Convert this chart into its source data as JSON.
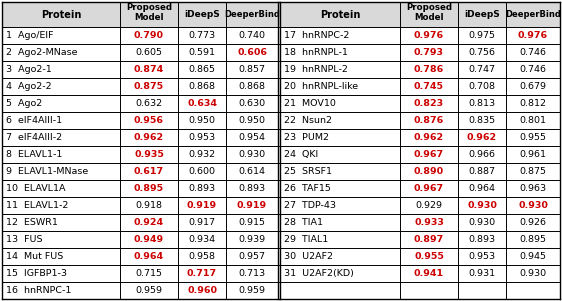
{
  "left_rows": [
    {
      "num": "1",
      "protein": "Ago/EIF",
      "vals": [
        "0.790",
        "0.773",
        "0.740"
      ],
      "red": [
        0
      ],
      "bold": [
        0
      ]
    },
    {
      "num": "2",
      "protein": "Ago2-MNase",
      "vals": [
        "0.605",
        "0.591",
        "0.606"
      ],
      "red": [
        2
      ],
      "bold": [
        2
      ]
    },
    {
      "num": "3",
      "protein": "Ago2-1",
      "vals": [
        "0.874",
        "0.865",
        "0.857"
      ],
      "red": [
        0
      ],
      "bold": [
        0
      ]
    },
    {
      "num": "4",
      "protein": "Ago2-2",
      "vals": [
        "0.875",
        "0.868",
        "0.868"
      ],
      "red": [
        0
      ],
      "bold": [
        0
      ]
    },
    {
      "num": "5",
      "protein": "Ago2",
      "vals": [
        "0.632",
        "0.634",
        "0.630"
      ],
      "red": [
        1
      ],
      "bold": [
        1
      ]
    },
    {
      "num": "6",
      "protein": "eIF4AIII-1",
      "vals": [
        "0.956",
        "0.950",
        "0.950"
      ],
      "red": [
        0
      ],
      "bold": [
        0
      ]
    },
    {
      "num": "7",
      "protein": "eIF4AIII-2",
      "vals": [
        "0.962",
        "0.953",
        "0.954"
      ],
      "red": [
        0
      ],
      "bold": [
        0
      ]
    },
    {
      "num": "8",
      "protein": "ELAVL1-1",
      "vals": [
        "0.935",
        "0.932",
        "0.930"
      ],
      "red": [
        0
      ],
      "bold": [
        0
      ]
    },
    {
      "num": "9",
      "protein": "ELAVL1-MNase",
      "vals": [
        "0.617",
        "0.600",
        "0.614"
      ],
      "red": [
        0
      ],
      "bold": [
        0
      ]
    },
    {
      "num": "10",
      "protein": "ELAVL1A",
      "vals": [
        "0.895",
        "0.893",
        "0.893"
      ],
      "red": [
        0
      ],
      "bold": [
        0
      ]
    },
    {
      "num": "11",
      "protein": "ELAVL1-2",
      "vals": [
        "0.918",
        "0.919",
        "0.919"
      ],
      "red": [
        1,
        2
      ],
      "bold": [
        1,
        2
      ]
    },
    {
      "num": "12",
      "protein": "ESWR1",
      "vals": [
        "0.924",
        "0.917",
        "0.915"
      ],
      "red": [
        0
      ],
      "bold": [
        0
      ]
    },
    {
      "num": "13",
      "protein": "FUS",
      "vals": [
        "0.949",
        "0.934",
        "0.939"
      ],
      "red": [
        0
      ],
      "bold": [
        0
      ]
    },
    {
      "num": "14",
      "protein": "Mut FUS",
      "vals": [
        "0.964",
        "0.958",
        "0.957"
      ],
      "red": [
        0
      ],
      "bold": [
        0
      ]
    },
    {
      "num": "15",
      "protein": "IGFBP1-3",
      "vals": [
        "0.715",
        "0.717",
        "0.713"
      ],
      "red": [
        1
      ],
      "bold": [
        1
      ]
    },
    {
      "num": "16",
      "protein": "hnRNPC-1",
      "vals": [
        "0.959",
        "0.960",
        "0.959"
      ],
      "red": [
        1
      ],
      "bold": [
        1
      ]
    }
  ],
  "right_rows": [
    {
      "num": "17",
      "protein": "hnRNPC-2",
      "vals": [
        "0.976",
        "0.975",
        "0.976"
      ],
      "red": [
        0,
        2
      ],
      "bold": [
        0,
        2
      ]
    },
    {
      "num": "18",
      "protein": "hnRNPL-1",
      "vals": [
        "0.793",
        "0.756",
        "0.746"
      ],
      "red": [
        0
      ],
      "bold": [
        0
      ]
    },
    {
      "num": "19",
      "protein": "hnRNPL-2",
      "vals": [
        "0.786",
        "0.747",
        "0.746"
      ],
      "red": [
        0
      ],
      "bold": [
        0
      ]
    },
    {
      "num": "20",
      "protein": "hnRNPL-like",
      "vals": [
        "0.745",
        "0.708",
        "0.679"
      ],
      "red": [
        0
      ],
      "bold": [
        0
      ]
    },
    {
      "num": "21",
      "protein": "MOV10",
      "vals": [
        "0.823",
        "0.813",
        "0.812"
      ],
      "red": [
        0
      ],
      "bold": [
        0
      ]
    },
    {
      "num": "22",
      "protein": "Nsun2",
      "vals": [
        "0.876",
        "0.835",
        "0.801"
      ],
      "red": [
        0
      ],
      "bold": [
        0
      ]
    },
    {
      "num": "23",
      "protein": "PUM2",
      "vals": [
        "0.962",
        "0.962",
        "0.955"
      ],
      "red": [
        0,
        1
      ],
      "bold": [
        0,
        1
      ]
    },
    {
      "num": "24",
      "protein": "QKI",
      "vals": [
        "0.967",
        "0.966",
        "0.961"
      ],
      "red": [
        0
      ],
      "bold": [
        0
      ]
    },
    {
      "num": "25",
      "protein": "SRSF1",
      "vals": [
        "0.890",
        "0.887",
        "0.875"
      ],
      "red": [
        0
      ],
      "bold": [
        0
      ]
    },
    {
      "num": "26",
      "protein": "TAF15",
      "vals": [
        "0.967",
        "0.964",
        "0.963"
      ],
      "red": [
        0
      ],
      "bold": [
        0
      ]
    },
    {
      "num": "27",
      "protein": "TDP-43",
      "vals": [
        "0.929",
        "0.930",
        "0.930"
      ],
      "red": [
        1,
        2
      ],
      "bold": [
        1,
        2
      ]
    },
    {
      "num": "28",
      "protein": "TIA1",
      "vals": [
        "0.933",
        "0.930",
        "0.926"
      ],
      "red": [
        0
      ],
      "bold": [
        0
      ]
    },
    {
      "num": "29",
      "protein": "TIAL1",
      "vals": [
        "0.897",
        "0.893",
        "0.895"
      ],
      "red": [
        0
      ],
      "bold": [
        0
      ]
    },
    {
      "num": "30",
      "protein": "U2AF2",
      "vals": [
        "0.955",
        "0.953",
        "0.945"
      ],
      "red": [
        0
      ],
      "bold": [
        0
      ]
    },
    {
      "num": "31",
      "protein": "U2AF2(KD)",
      "vals": [
        "0.941",
        "0.931",
        "0.930"
      ],
      "red": [
        0
      ],
      "bold": [
        0
      ]
    },
    {
      "num": "",
      "protein": "",
      "vals": [
        "",
        "",
        ""
      ],
      "red": [],
      "bold": []
    }
  ],
  "bg_color": "#ffffff",
  "border_color": "#000000",
  "text_color": "#000000",
  "red_color": "#cc0000",
  "header_bg": "#d9d9d9",
  "cell_fontsize": 6.8,
  "header_fontsize": 7.0
}
